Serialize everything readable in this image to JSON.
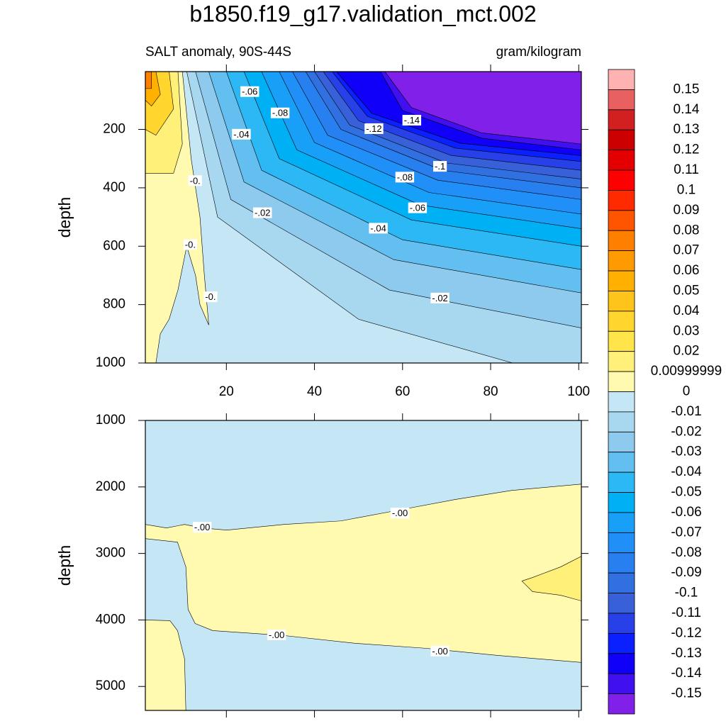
{
  "title": "b1850.f19_g17.validation_mct.002",
  "subtitle_left": "SALT anomaly, 90S-44S",
  "subtitle_right": "gram/kilogram",
  "colorbar": {
    "levels": [
      0.15,
      0.14,
      0.13,
      0.12,
      0.11,
      0.1,
      0.09,
      0.08,
      0.07,
      0.06,
      0.05,
      0.04,
      0.03,
      0.02,
      0.00999999,
      0,
      -0.01,
      -0.02,
      -0.03,
      -0.04,
      -0.05,
      -0.06,
      -0.07,
      -0.08,
      -0.09,
      -0.1,
      -0.11,
      -0.12,
      -0.13,
      -0.14,
      -0.15
    ],
    "colors": [
      "#ffb2b2",
      "#e86060",
      "#d22020",
      "#cc0000",
      "#e40000",
      "#ff0000",
      "#ff2a00",
      "#ff5500",
      "#ff8000",
      "#ff9a00",
      "#ffb000",
      "#ffc41a",
      "#ffd52e",
      "#ffe44a",
      "#fff07a",
      "#fffab0",
      "#c4e6f5",
      "#a8d8f0",
      "#8ecaee",
      "#62bff0",
      "#2cb8f4",
      "#00b0f5",
      "#18a0f8",
      "#2090f8",
      "#2880f0",
      "#3070e0",
      "#3860d8",
      "#2840e8",
      "#0a20ff",
      "#1000f8",
      "#4010f0",
      "#8020e8"
    ]
  },
  "chart_data": [
    {
      "type": "contour",
      "ylabel": "depth",
      "y_inverted": true,
      "xticklabels": true,
      "xlim": [
        1.6,
        100.6
      ],
      "ylim": [
        2,
        1000
      ],
      "xticks": [
        20,
        40,
        60,
        80,
        100
      ],
      "yticks": [
        200,
        400,
        600,
        800,
        1000
      ],
      "regions": [
        {
          "level": 0,
          "color": "#c4e6f5",
          "x": [
            1.6,
            100.6,
            100.6,
            1.6
          ],
          "y": [
            2,
            2,
            1000,
            1000
          ]
        },
        {
          "level": -0.01,
          "color": "#a8d8f0",
          "x": [
            11,
            18,
            50,
            85,
            100.6,
            100.6
          ],
          "y": [
            2,
            500,
            850,
            1000,
            1000,
            2
          ]
        },
        {
          "level": -0.02,
          "color": "#8ecaee",
          "x": [
            13,
            21,
            57,
            100.6,
            100.6
          ],
          "y": [
            2,
            440,
            750,
            880,
            2
          ]
        },
        {
          "level": -0.03,
          "color": "#62bff0",
          "x": [
            16,
            24,
            58,
            100.6,
            100.6
          ],
          "y": [
            2,
            380,
            646,
            760,
            2
          ]
        },
        {
          "level": -0.04,
          "color": "#2cb8f4",
          "x": [
            20,
            28,
            60,
            100.6,
            100.6
          ],
          "y": [
            2,
            340,
            578,
            680,
            2
          ]
        },
        {
          "level": -0.05,
          "color": "#00b0f5",
          "x": [
            24,
            32,
            62,
            100.6,
            100.6
          ],
          "y": [
            2,
            300,
            510,
            600,
            2
          ]
        },
        {
          "level": -0.06,
          "color": "#18a0f8",
          "x": [
            28,
            36,
            64,
            100.6,
            100.6
          ],
          "y": [
            2,
            270,
            459,
            540,
            2
          ]
        },
        {
          "level": -0.07,
          "color": "#2090f8",
          "x": [
            32,
            40,
            66,
            100.6,
            100.6
          ],
          "y": [
            2,
            245,
            416,
            490,
            2
          ]
        },
        {
          "level": -0.08,
          "color": "#2880f0",
          "x": [
            35,
            43,
            68,
            100.6,
            100.6
          ],
          "y": [
            2,
            220,
            374,
            440,
            2
          ]
        },
        {
          "level": -0.09,
          "color": "#3070e0",
          "x": [
            38,
            46,
            69,
            100.6,
            100.6
          ],
          "y": [
            2,
            200,
            340,
            400,
            2
          ]
        },
        {
          "level": -0.1,
          "color": "#3860d8",
          "x": [
            40,
            48,
            70,
            100.6,
            100.6
          ],
          "y": [
            2,
            185,
            315,
            370,
            2
          ]
        },
        {
          "level": -0.11,
          "color": "#2840e8",
          "x": [
            42,
            50,
            71,
            100.6,
            100.6
          ],
          "y": [
            2,
            170,
            289,
            340,
            2
          ]
        },
        {
          "level": -0.12,
          "color": "#0a20ff",
          "x": [
            44,
            52,
            72,
            100.6,
            100.6
          ],
          "y": [
            2,
            155,
            264,
            310,
            2
          ]
        },
        {
          "level": -0.13,
          "color": "#1000f8",
          "x": [
            45,
            53,
            73,
            100.6,
            100.6
          ],
          "y": [
            2,
            145,
            247,
            290,
            2
          ]
        },
        {
          "level": -0.14,
          "color": "#4010f0",
          "x": [
            55,
            60,
            78,
            100.6,
            100.6
          ],
          "y": [
            2,
            135,
            230,
            270,
            2
          ]
        },
        {
          "level": -0.15,
          "color": "#8020e8",
          "x": [
            56,
            62,
            78,
            100.6,
            100.6
          ],
          "y": [
            2,
            125,
            212,
            250,
            2
          ]
        },
        {
          "level": 0,
          "color": "#fffab0",
          "x": [
            1.6,
            10,
            12,
            14,
            15,
            16,
            14,
            13,
            11,
            9,
            7,
            5,
            4,
            1.6
          ],
          "y": [
            2,
            2,
            300,
            500,
            700,
            870,
            800,
            700,
            600,
            750,
            850,
            900,
            1000,
            1000
          ]
        },
        {
          "level": 0.01,
          "color": "#fff07a",
          "x": [
            1.6,
            9,
            10,
            8,
            1.6
          ],
          "y": [
            2,
            2,
            250,
            350,
            350
          ]
        },
        {
          "level": 0.02,
          "color": "#ffd52e",
          "x": [
            1.6,
            7,
            8,
            4,
            1.6
          ],
          "y": [
            2,
            2,
            130,
            220,
            200
          ]
        },
        {
          "level": 0.04,
          "color": "#ffb000",
          "x": [
            1.6,
            4,
            5,
            3,
            1.6
          ],
          "y": [
            2,
            2,
            80,
            120,
            100
          ]
        },
        {
          "level": 0.06,
          "color": "#ff8000",
          "x": [
            1.6,
            3,
            3,
            1.6
          ],
          "y": [
            2,
            2,
            60,
            60
          ]
        }
      ],
      "labels": [
        {
          "value": -0.06,
          "label": "-.06",
          "x": 25.3,
          "y": 73
        },
        {
          "value": -0.08,
          "label": "-.08",
          "x": 32.2,
          "y": 146
        },
        {
          "value": -0.04,
          "label": "-.04",
          "x": 23.4,
          "y": 219
        },
        {
          "value": -0.12,
          "label": "-.12",
          "x": 53.5,
          "y": 200
        },
        {
          "value": -0.14,
          "label": "-.14",
          "x": 62.1,
          "y": 171
        },
        {
          "value": -0.1,
          "label": "-.1",
          "x": 68.5,
          "y": 329
        },
        {
          "value": -0.08,
          "label": "-.08",
          "x": 60.5,
          "y": 366
        },
        {
          "value": -0.06,
          "label": "-.06",
          "x": 63.4,
          "y": 471
        },
        {
          "value": -0.02,
          "label": "-.02",
          "x": 28.2,
          "y": 488
        },
        {
          "value": -0.04,
          "label": "-.04",
          "x": 54.5,
          "y": 541
        },
        {
          "value": -0.02,
          "label": "-.02",
          "x": 68.5,
          "y": 780
        },
        {
          "value": 0,
          "label": "-0.",
          "x": 12.9,
          "y": 378
        },
        {
          "value": 0,
          "label": "-0.",
          "x": 11.8,
          "y": 597
        },
        {
          "value": 0,
          "label": "-0.",
          "x": 16.4,
          "y": 776
        }
      ]
    },
    {
      "type": "contour",
      "ylabel": "depth",
      "y_inverted": true,
      "xticklabels": false,
      "xlim": [
        1.6,
        100.6
      ],
      "ylim": [
        1000,
        5360
      ],
      "xticks": [
        20,
        40,
        60,
        80,
        100
      ],
      "yticks": [
        1000,
        2000,
        3000,
        4000,
        5000
      ],
      "regions": [
        {
          "level": 0,
          "color": "#c4e6f5",
          "x": [
            1.6,
            100.6,
            100.6,
            1.6
          ],
          "y": [
            1000,
            1000,
            5360,
            5360
          ]
        },
        {
          "level": 0,
          "color": "#fffab0",
          "x": [
            1.6,
            6.4,
            10.5,
            14.5,
            20.1,
            33.1,
            46,
            58.9,
            71.8,
            84.7,
            100.6,
            100.6,
            81.4,
            65.3,
            49.2,
            33.1,
            16.9,
            12.9,
            11.3,
            10.8,
            8.9,
            1.6
          ],
          "y": [
            2564,
            2617,
            2564,
            2617,
            2649,
            2564,
            2511,
            2351,
            2191,
            2053,
            1957,
            4638,
            4532,
            4426,
            4351,
            4234,
            4160,
            4053,
            3840,
            3202,
            2830,
            2777
          ]
        },
        {
          "level": 0,
          "color": "#fffab0",
          "x": [
            1.6,
            7.2,
            8.9,
            10.5,
            10.8,
            1.6
          ],
          "y": [
            4000,
            4011,
            4160,
            4585,
            5360,
            5360
          ]
        },
        {
          "level": 0.01,
          "color": "#fff07a",
          "x": [
            100.6,
            95.9,
            89.5,
            87.1,
            89.5,
            95.9,
            100.6
          ],
          "y": [
            3043,
            3202,
            3362,
            3415,
            3574,
            3628,
            3713
          ]
        }
      ],
      "labels": [
        {
          "value": 0,
          "label": "-.00",
          "x": 14.5,
          "y": 2617
        },
        {
          "value": 0,
          "label": "-.00",
          "x": 59.4,
          "y": 2404
        },
        {
          "value": 0,
          "label": "-.00",
          "x": 31.4,
          "y": 4234
        },
        {
          "value": 0,
          "label": "-.00",
          "x": 68.5,
          "y": 4479
        }
      ]
    }
  ]
}
